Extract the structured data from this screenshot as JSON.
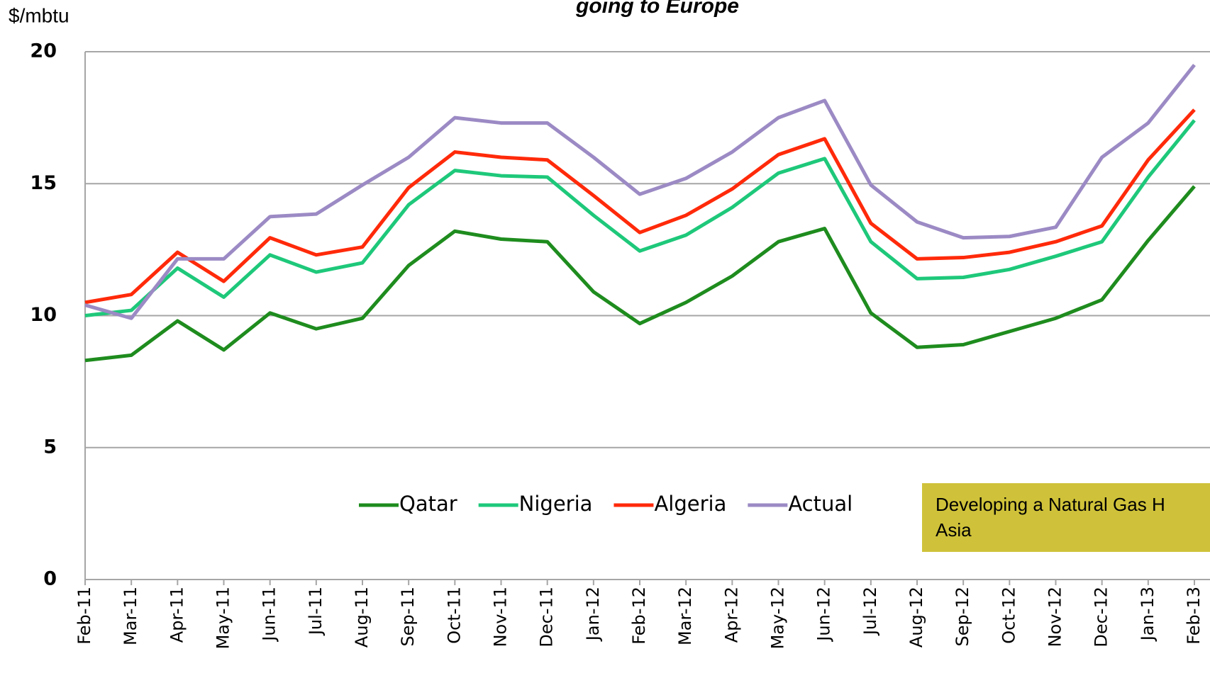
{
  "chart_data": {
    "type": "line",
    "title": "going to Europe",
    "y_label": "$/mbtu",
    "categories": [
      "Feb-11",
      "Mar-11",
      "Apr-11",
      "May-11",
      "Jun-11",
      "Jul-11",
      "Aug-11",
      "Sep-11",
      "Oct-11",
      "Nov-11",
      "Dec-11",
      "Jan-12",
      "Feb-12",
      "Mar-12",
      "Apr-12",
      "May-12",
      "Jun-12",
      "Jul-12",
      "Aug-12",
      "Sep-12",
      "Oct-12",
      "Nov-12",
      "Dec-12",
      "Jan-13",
      "Feb-13"
    ],
    "series": [
      {
        "name": "Qatar",
        "color": "#1e8c1e",
        "values": [
          8.3,
          8.5,
          9.8,
          8.7,
          10.1,
          9.5,
          9.9,
          11.9,
          13.2,
          12.9,
          12.8,
          10.9,
          9.7,
          10.5,
          11.5,
          12.8,
          13.3,
          10.1,
          8.8,
          8.9,
          9.4,
          9.9,
          10.6,
          12.85,
          14.9
        ]
      },
      {
        "name": "Nigeria",
        "color": "#1ec87a",
        "values": [
          10.0,
          10.2,
          11.8,
          10.7,
          12.3,
          11.65,
          12.0,
          14.2,
          15.5,
          15.3,
          15.25,
          13.8,
          12.45,
          13.05,
          14.1,
          15.4,
          15.95,
          12.8,
          11.4,
          11.45,
          11.75,
          12.25,
          12.8,
          15.25,
          17.4
        ]
      },
      {
        "name": "Algeria",
        "color": "#ff2a0a",
        "values": [
          10.5,
          10.8,
          12.4,
          11.3,
          12.95,
          12.3,
          12.6,
          14.85,
          16.2,
          16.0,
          15.9,
          14.55,
          13.15,
          13.8,
          14.8,
          16.1,
          16.7,
          13.5,
          12.15,
          12.2,
          12.4,
          12.8,
          13.4,
          15.9,
          17.8
        ]
      },
      {
        "name": "Actual",
        "color": "#9b8ac4",
        "values": [
          10.4,
          9.9,
          12.15,
          12.15,
          13.75,
          13.85,
          14.95,
          16.0,
          17.5,
          17.3,
          17.3,
          16.0,
          14.6,
          15.2,
          16.2,
          17.5,
          18.15,
          14.95,
          13.55,
          12.95,
          13.0,
          13.35,
          16.0,
          17.3,
          19.5
        ]
      }
    ],
    "ylim": [
      0,
      20
    ],
    "yticks": [
      0,
      5,
      10,
      15,
      20
    ],
    "grid": true,
    "annotation": [
      "Developing a Natural Gas H",
      "Asia"
    ]
  }
}
